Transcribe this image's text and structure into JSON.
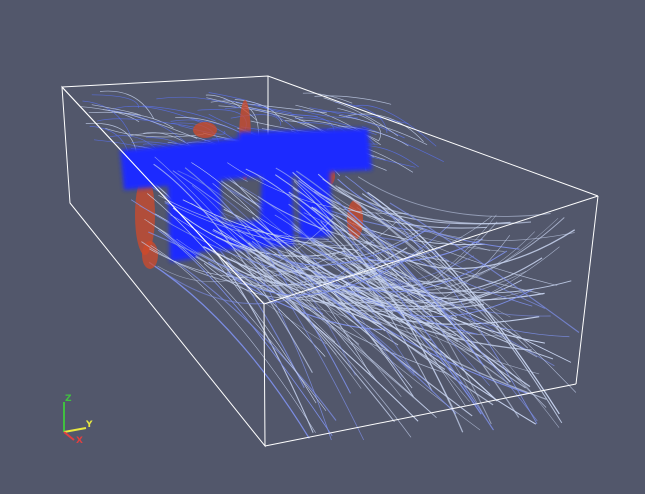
{
  "viewport": {
    "background": "#52576b",
    "bounding_box_color": "#ffffff",
    "streamline_color_low": "#1a2cff",
    "streamline_color_mid": "#c8d4f0",
    "streamline_color_high": "#d24a2a"
  },
  "orientation_axes": {
    "z_label": "Z",
    "y_label": "Y",
    "x_label": "X",
    "z_color": "#40c040",
    "y_color": "#e8e840",
    "x_color": "#e04040"
  }
}
